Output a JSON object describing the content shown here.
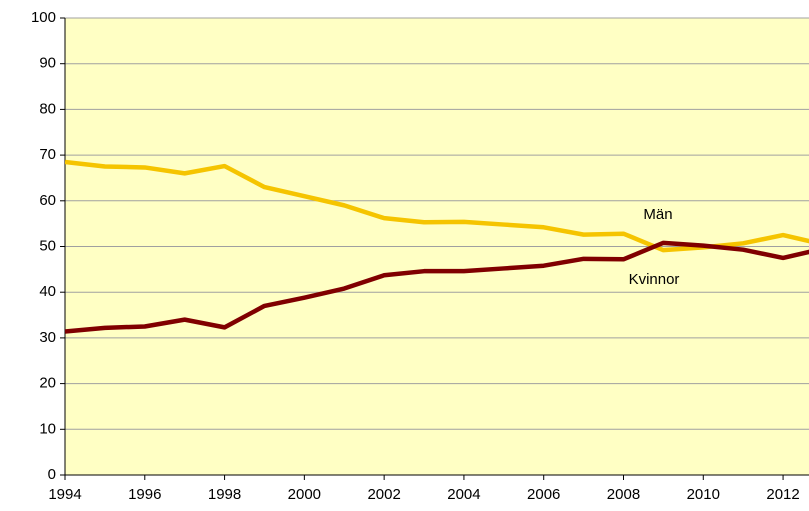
{
  "chart_data": {
    "type": "line",
    "x": [
      1994,
      1995,
      1996,
      1997,
      1998,
      1999,
      2000,
      2001,
      2002,
      2003,
      2004,
      2005,
      2006,
      2007,
      2008,
      2009,
      2010,
      2011,
      2012,
      2013
    ],
    "series": [
      {
        "name": "Män",
        "color": "#f5c400",
        "values": [
          68.5,
          67.5,
          67.3,
          66,
          67.6,
          63,
          61,
          59,
          56.2,
          55.3,
          55.4,
          54.8,
          54.2,
          52.6,
          52.8,
          49.2,
          49.8,
          50.7,
          52.5,
          50.5
        ]
      },
      {
        "name": "Kvinnor",
        "color": "#800000",
        "values": [
          31.4,
          32.2,
          32.5,
          34,
          32.3,
          37,
          38.8,
          40.8,
          43.7,
          44.6,
          44.6,
          45.2,
          45.8,
          47.3,
          47.2,
          50.8,
          50.2,
          49.3,
          47.5,
          49.5
        ]
      }
    ],
    "xlim": [
      1994,
      2012.65
    ],
    "xticks": [
      1994,
      1996,
      1998,
      2000,
      2002,
      2004,
      2006,
      2008,
      2010,
      2012
    ],
    "ylim": [
      0,
      100
    ],
    "yticks": [
      0,
      10,
      20,
      30,
      40,
      50,
      60,
      70,
      80,
      90,
      100
    ],
    "grid": true,
    "background": "#ffffc4"
  }
}
